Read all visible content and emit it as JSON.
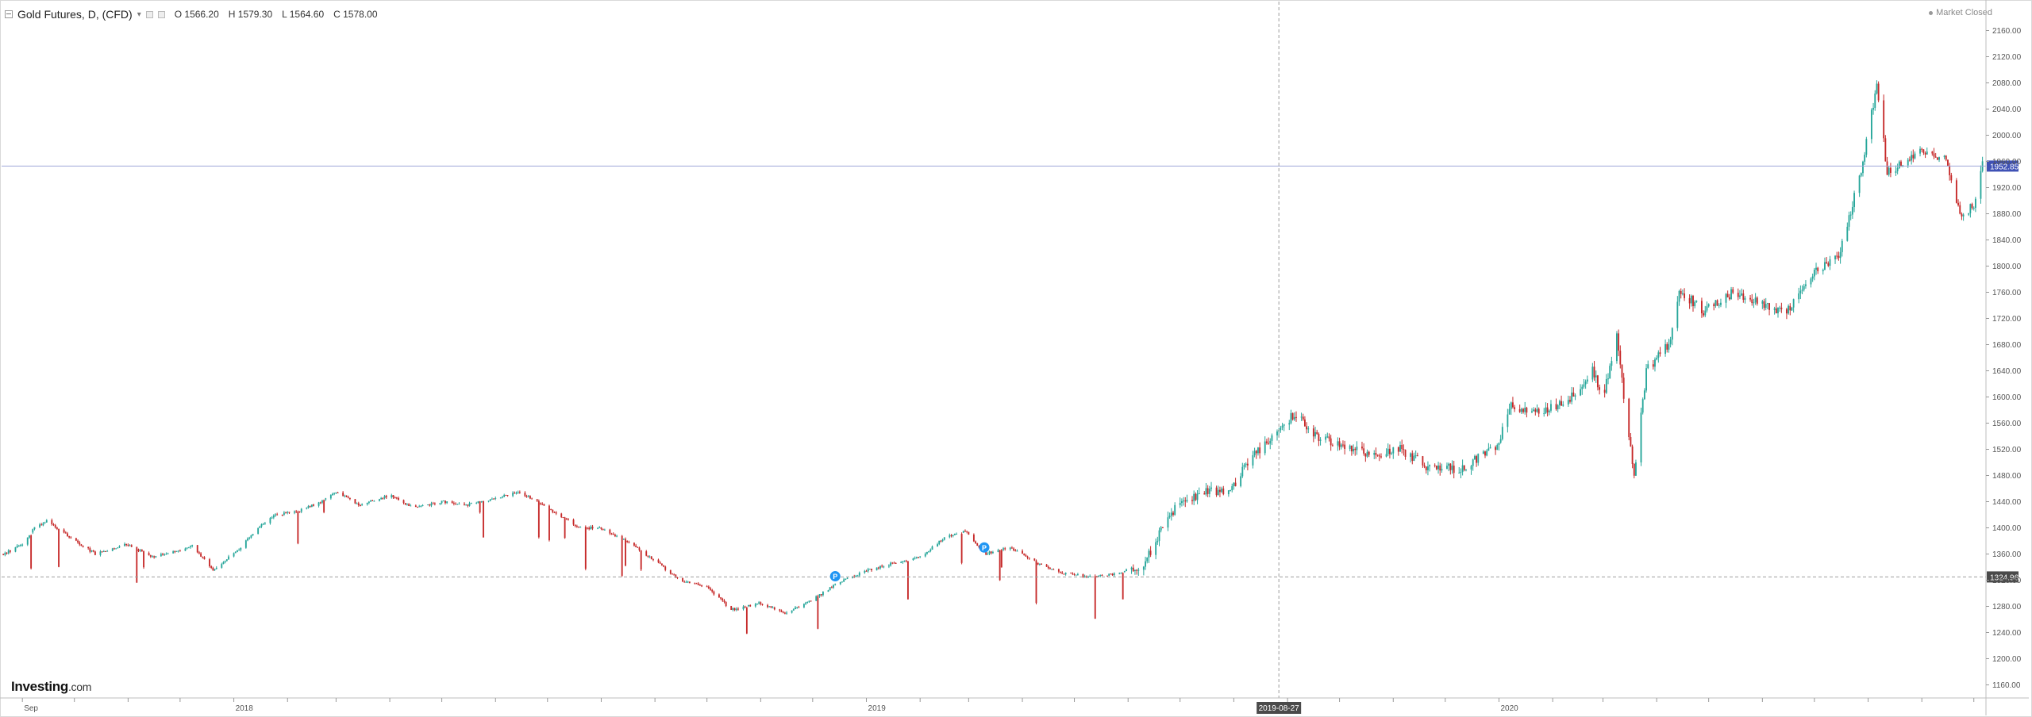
{
  "header": {
    "symbol": "Gold Futures, D, (CFD)",
    "dropdown_glyph": "▾",
    "open": "O 1566.20",
    "high": "H 1579.30",
    "low": "L 1564.60",
    "close": "C 1578.00"
  },
  "market_status": "Market Closed",
  "logo": {
    "brand": "Investing",
    "domain": ".com"
  },
  "colors": {
    "up": "#26a69a",
    "down": "#c62828",
    "price_line": "#9fa8da",
    "price_label_bg": "#3f51b5",
    "crosshair_label_bg": "#4a4a4a",
    "event_marker": "#2196f3"
  },
  "chart_data": {
    "type": "candlestick",
    "x_ticks": [
      {
        "date": "2017-09-01",
        "label": "Sep"
      },
      {
        "date": "2017-10-01",
        "label": ""
      },
      {
        "date": "2017-11-01",
        "label": ""
      },
      {
        "date": "2017-12-01",
        "label": ""
      },
      {
        "date": "2018-01-01",
        "label": "2018"
      },
      {
        "date": "2018-02-01",
        "label": ""
      },
      {
        "date": "2018-03-01",
        "label": ""
      },
      {
        "date": "2018-04-01",
        "label": ""
      },
      {
        "date": "2018-05-01",
        "label": ""
      },
      {
        "date": "2018-06-01",
        "label": ""
      },
      {
        "date": "2018-07-01",
        "label": ""
      },
      {
        "date": "2018-08-01",
        "label": ""
      },
      {
        "date": "2018-09-01",
        "label": ""
      },
      {
        "date": "2018-10-01",
        "label": ""
      },
      {
        "date": "2018-11-01",
        "label": ""
      },
      {
        "date": "2018-12-01",
        "label": ""
      },
      {
        "date": "2019-01-01",
        "label": "2019"
      },
      {
        "date": "2019-02-01",
        "label": ""
      },
      {
        "date": "2019-03-01",
        "label": ""
      },
      {
        "date": "2019-04-01",
        "label": ""
      },
      {
        "date": "2019-05-01",
        "label": ""
      },
      {
        "date": "2019-06-01",
        "label": ""
      },
      {
        "date": "2019-07-01",
        "label": ""
      },
      {
        "date": "2019-08-01",
        "label": ""
      },
      {
        "date": "2019-09-01",
        "label": ""
      },
      {
        "date": "2019-10-01",
        "label": ""
      },
      {
        "date": "2019-11-01",
        "label": ""
      },
      {
        "date": "2019-12-01",
        "label": ""
      },
      {
        "date": "2020-01-01",
        "label": "2020"
      },
      {
        "date": "2020-02-01",
        "label": ""
      },
      {
        "date": "2020-03-01",
        "label": ""
      },
      {
        "date": "2020-04-01",
        "label": ""
      },
      {
        "date": "2020-05-01",
        "label": ""
      },
      {
        "date": "2020-06-01",
        "label": ""
      },
      {
        "date": "2020-07-01",
        "label": ""
      },
      {
        "date": "2020-08-01",
        "label": ""
      },
      {
        "date": "2020-09-01",
        "label": ""
      },
      {
        "date": "2020-10-01",
        "label": ""
      }
    ],
    "y_ticks": [
      1160,
      1200,
      1240,
      1280,
      1320,
      1360,
      1400,
      1440,
      1480,
      1520,
      1560,
      1600,
      1640,
      1680,
      1720,
      1760,
      1800,
      1840,
      1880,
      1920,
      1960,
      2000,
      2040,
      2080,
      2120,
      2160
    ],
    "ylim": [
      1140,
      2180
    ],
    "xlim": [
      "2017-08-20",
      "2020-10-08"
    ],
    "current_price": {
      "value": 1952.85,
      "label": "1952.85"
    },
    "crosshair": {
      "date": "2019-08-27",
      "label": "2019-08-27",
      "price": 1324.96,
      "price_label": "1324.96"
    },
    "event_markers": [
      {
        "date": "2018-12-14",
        "price": 1326,
        "label": "P"
      },
      {
        "date": "2019-03-10",
        "price": 1370,
        "label": "P"
      }
    ],
    "series_path": [
      [
        "2017-08-21",
        1360
      ],
      [
        "2017-09-01",
        1375
      ],
      [
        "2017-09-08",
        1400
      ],
      [
        "2017-09-15",
        1410
      ],
      [
        "2017-09-29",
        1385
      ],
      [
        "2017-10-13",
        1360
      ],
      [
        "2017-10-31",
        1375
      ],
      [
        "2017-11-15",
        1355
      ],
      [
        "2017-11-30",
        1365
      ],
      [
        "2017-12-08",
        1372
      ],
      [
        "2017-12-20",
        1335
      ],
      [
        "2018-01-05",
        1370
      ],
      [
        "2018-01-15",
        1400
      ],
      [
        "2018-01-25",
        1420
      ],
      [
        "2018-02-07",
        1425
      ],
      [
        "2018-02-20",
        1440
      ],
      [
        "2018-03-01",
        1455
      ],
      [
        "2018-03-15",
        1435
      ],
      [
        "2018-04-01",
        1450
      ],
      [
        "2018-04-15",
        1430
      ],
      [
        "2018-05-01",
        1440
      ],
      [
        "2018-05-15",
        1435
      ],
      [
        "2018-06-01",
        1445
      ],
      [
        "2018-06-15",
        1455
      ],
      [
        "2018-07-01",
        1430
      ],
      [
        "2018-07-20",
        1400
      ],
      [
        "2018-08-01",
        1400
      ],
      [
        "2018-08-15",
        1380
      ],
      [
        "2018-09-01",
        1350
      ],
      [
        "2018-09-15",
        1320
      ],
      [
        "2018-10-01",
        1310
      ],
      [
        "2018-10-15",
        1275
      ],
      [
        "2018-11-01",
        1285
      ],
      [
        "2018-11-15",
        1270
      ],
      [
        "2018-12-01",
        1290
      ],
      [
        "2018-12-15",
        1315
      ],
      [
        "2019-01-01",
        1335
      ],
      [
        "2019-01-15",
        1345
      ],
      [
        "2019-02-01",
        1355
      ],
      [
        "2019-02-15",
        1385
      ],
      [
        "2019-02-28",
        1395
      ],
      [
        "2019-03-10",
        1360
      ],
      [
        "2019-03-25",
        1370
      ],
      [
        "2019-04-10",
        1345
      ],
      [
        "2019-04-25",
        1330
      ],
      [
        "2019-05-10",
        1325
      ],
      [
        "2019-05-25",
        1330
      ],
      [
        "2019-06-10",
        1345
      ],
      [
        "2019-06-20",
        1395
      ],
      [
        "2019-07-01",
        1440
      ],
      [
        "2019-07-15",
        1455
      ],
      [
        "2019-07-31",
        1460
      ],
      [
        "2019-08-10",
        1505
      ],
      [
        "2019-08-27",
        1545
      ],
      [
        "2019-09-05",
        1575
      ],
      [
        "2019-09-15",
        1545
      ],
      [
        "2019-10-01",
        1525
      ],
      [
        "2019-10-20",
        1510
      ],
      [
        "2019-11-05",
        1520
      ],
      [
        "2019-11-20",
        1495
      ],
      [
        "2019-12-10",
        1490
      ],
      [
        "2019-12-31",
        1525
      ],
      [
        "2020-01-08",
        1585
      ],
      [
        "2020-01-20",
        1575
      ],
      [
        "2020-02-10",
        1595
      ],
      [
        "2020-02-24",
        1640
      ],
      [
        "2020-03-01",
        1600
      ],
      [
        "2020-03-09",
        1690
      ],
      [
        "2020-03-19",
        1475
      ],
      [
        "2020-03-26",
        1640
      ],
      [
        "2020-04-08",
        1680
      ],
      [
        "2020-04-14",
        1765
      ],
      [
        "2020-04-28",
        1730
      ],
      [
        "2020-05-15",
        1760
      ],
      [
        "2020-06-01",
        1740
      ],
      [
        "2020-06-15",
        1730
      ],
      [
        "2020-07-01",
        1790
      ],
      [
        "2020-07-15",
        1815
      ],
      [
        "2020-07-27",
        1935
      ],
      [
        "2020-08-06",
        2075
      ],
      [
        "2020-08-12",
        1945
      ],
      [
        "2020-08-20",
        1955
      ],
      [
        "2020-09-01",
        1975
      ],
      [
        "2020-09-15",
        1965
      ],
      [
        "2020-09-24",
        1870
      ],
      [
        "2020-10-01",
        1895
      ],
      [
        "2020-10-06",
        1955
      ]
    ]
  }
}
